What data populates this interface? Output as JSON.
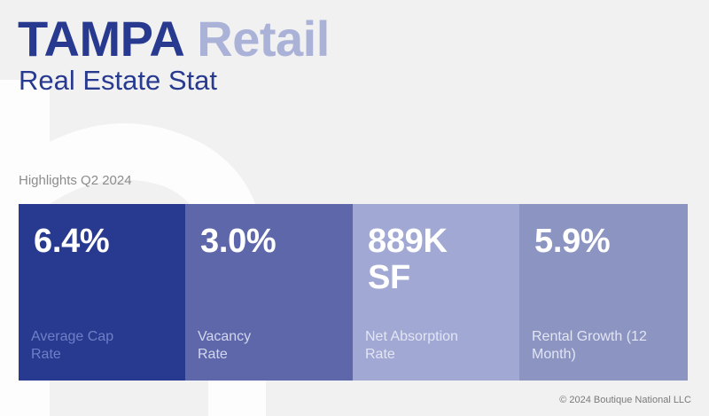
{
  "header": {
    "city": "TAMPA",
    "property_type": "Retail",
    "subtitle": "Real Estate Stat"
  },
  "period_label": "Highlights Q2 2024",
  "stats": [
    {
      "value": "6.4%",
      "label": "Average Cap Rate",
      "color": "#283a8f",
      "label_color": "#6f7fc7"
    },
    {
      "value": "3.0%",
      "label": "Vacancy Rate",
      "color": "#5d67a9",
      "label_color": "#d3d7ee"
    },
    {
      "value": "889K SF",
      "label": "Net Absorption Rate",
      "color": "#a1a8d3",
      "label_color": "#e2e5f4"
    },
    {
      "value": "5.9%",
      "label": "Rental Growth (12 Month)",
      "color": "#8c94c1",
      "label_color": "#e2e5f4"
    }
  ],
  "footer": {
    "copyright": "© 2024 Boutique National LLC"
  },
  "colors": {
    "background": "#f1f1f2",
    "brand_primary": "#283a8f",
    "brand_light": "#aab2d8",
    "watermark": "#ffffff"
  },
  "watermark": {
    "icon": "brand-letter-mark-icon"
  }
}
